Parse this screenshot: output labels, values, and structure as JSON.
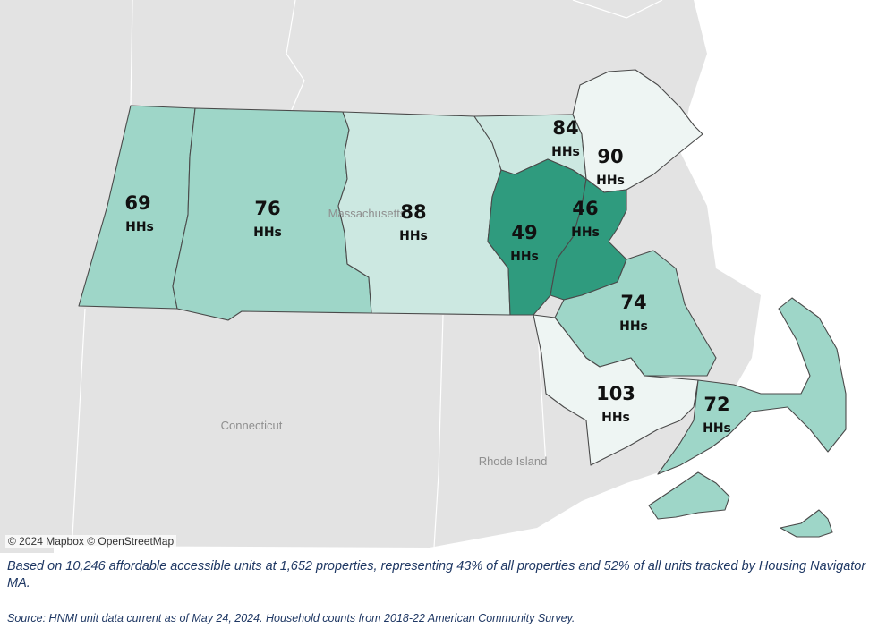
{
  "map": {
    "attribution": "© 2024 Mapbox © OpenStreetMap",
    "place_labels": {
      "massachusetts": "Massachusetts",
      "connecticut": "Connecticut",
      "rhode_island": "Rhode Island"
    },
    "colors": {
      "basemap_land": "#e3e3e3",
      "basemap_water": "#ffffff",
      "lightest": "#eef5f3",
      "light": "#cce8e1",
      "medium": "#9ed6c8",
      "dark": "#2f9b7e"
    },
    "regions": [
      {
        "id": "berkshire",
        "value": "69",
        "unit": "HHs",
        "shade": "medium"
      },
      {
        "id": "pioneer-valley",
        "value": "76",
        "unit": "HHs",
        "shade": "medium"
      },
      {
        "id": "central",
        "value": "88",
        "unit": "HHs",
        "shade": "light"
      },
      {
        "id": "merrimack-valley",
        "value": "84",
        "unit": "HHs",
        "shade": "light"
      },
      {
        "id": "north-shore",
        "value": "90",
        "unit": "HHs",
        "shade": "lightest"
      },
      {
        "id": "metrowest",
        "value": "49",
        "unit": "HHs",
        "shade": "dark"
      },
      {
        "id": "greater-boston",
        "value": "46",
        "unit": "HHs",
        "shade": "dark"
      },
      {
        "id": "south-shore",
        "value": "74",
        "unit": "HHs",
        "shade": "medium"
      },
      {
        "id": "southeast",
        "value": "103",
        "unit": "HHs",
        "shade": "lightest"
      },
      {
        "id": "cape-islands",
        "value": "72",
        "unit": "HHs",
        "shade": "medium"
      }
    ]
  },
  "caption": "Based on 10,246 affordable accessible units at 1,652 properties, representing 43% of all properties and 52% of all units tracked by Housing Navigator MA.",
  "source": "Source: HNMI unit data current as of May 24, 2024. Household counts from 2018-22 American Community Survey."
}
